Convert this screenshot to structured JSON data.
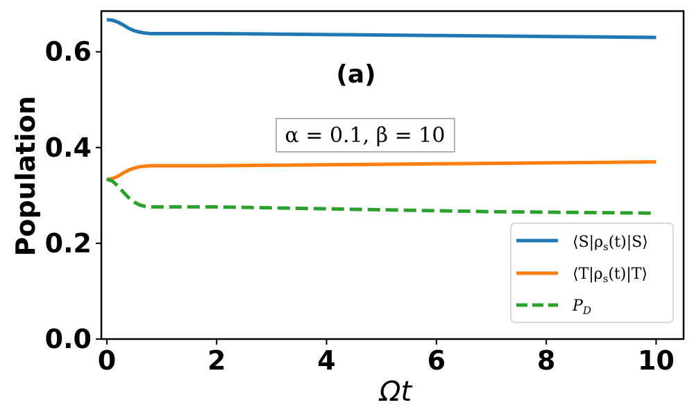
{
  "chart_data": {
    "type": "line",
    "xlabel": "Ωt",
    "ylabel": "Population",
    "xlim": [
      -0.1,
      10.5
    ],
    "ylim": [
      0.0,
      0.685
    ],
    "xticks": [
      0,
      2,
      4,
      6,
      8,
      10
    ],
    "yticks": [
      0.0,
      0.2,
      0.4,
      0.6
    ],
    "xtick_labels": [
      "0",
      "2",
      "4",
      "6",
      "8",
      "10"
    ],
    "ytick_labels": [
      "0.0",
      "0.2",
      "0.4",
      "0.6"
    ],
    "annotations": {
      "panel": "(a)",
      "params": "α = 0.1, β = 10"
    },
    "legend_position": "lower-right",
    "series": [
      {
        "name": "⟨S|ρs(t)|S⟩",
        "color": "#1f77b4",
        "style": "solid",
        "x": [
          0,
          0.1,
          0.2,
          0.3,
          0.4,
          0.5,
          0.6,
          0.7,
          0.8,
          0.9,
          1.0,
          1.5,
          2,
          3,
          4,
          5,
          6,
          7,
          8,
          9,
          10
        ],
        "y": [
          0.667,
          0.666,
          0.662,
          0.656,
          0.649,
          0.644,
          0.641,
          0.639,
          0.638,
          0.638,
          0.638,
          0.638,
          0.638,
          0.637,
          0.636,
          0.635,
          0.634,
          0.633,
          0.632,
          0.631,
          0.63
        ]
      },
      {
        "name": "⟨T|ρs(t)|T⟩",
        "color": "#ff7f0e",
        "style": "solid",
        "x": [
          0,
          0.1,
          0.2,
          0.3,
          0.4,
          0.5,
          0.6,
          0.7,
          0.8,
          0.9,
          1.0,
          1.5,
          2,
          3,
          4,
          5,
          6,
          7,
          8,
          9,
          10
        ],
        "y": [
          0.333,
          0.335,
          0.34,
          0.347,
          0.353,
          0.357,
          0.36,
          0.361,
          0.362,
          0.362,
          0.362,
          0.362,
          0.362,
          0.363,
          0.364,
          0.365,
          0.366,
          0.367,
          0.368,
          0.369,
          0.37
        ]
      },
      {
        "name": "P_D",
        "color": "#2ca02c",
        "style": "dashed",
        "x": [
          0,
          0.1,
          0.2,
          0.3,
          0.4,
          0.5,
          0.6,
          0.7,
          0.8,
          0.9,
          1.0,
          1.5,
          2,
          3,
          4,
          5,
          6,
          7,
          8,
          9,
          10
        ],
        "y": [
          0.334,
          0.33,
          0.32,
          0.307,
          0.295,
          0.286,
          0.28,
          0.277,
          0.276,
          0.276,
          0.276,
          0.276,
          0.276,
          0.274,
          0.272,
          0.27,
          0.268,
          0.266,
          0.265,
          0.264,
          0.263
        ]
      }
    ],
    "legend_labels": {
      "S": {
        "pre": "⟨S|ρ",
        "sub": "s",
        "post": "(t)|S⟩"
      },
      "T": {
        "pre": "⟨T|ρ",
        "sub": "s",
        "post": "(t)|T⟩"
      },
      "D": {
        "pre": "P",
        "sub": "D",
        "post": ""
      }
    }
  }
}
